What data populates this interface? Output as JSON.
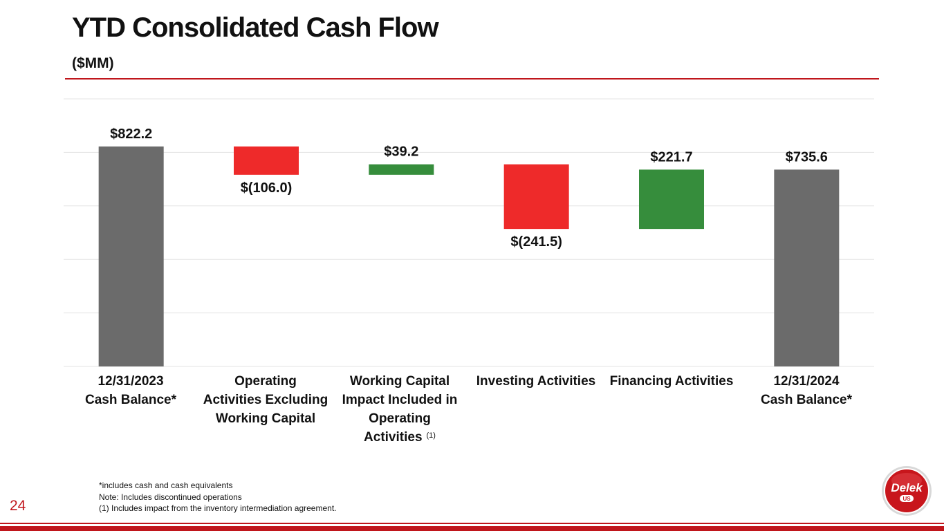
{
  "slide": {
    "title": "YTD Consolidated Cash Flow",
    "subtitle": "($MM)",
    "page_number": "24",
    "footnotes": [
      "*includes cash and cash equivalents",
      "Note: Includes discontinued operations",
      "(1) Includes impact from the inventory intermediation agreement."
    ],
    "footnote_marker": "(1)",
    "logo_text": "Delek",
    "logo_subtext": "US"
  },
  "colors": {
    "total": "#6b6b6b",
    "decrease": "#ee2a2a",
    "increase": "#368d3c",
    "accent": "#c0161c",
    "grid": "#e3e3e3"
  },
  "chart_data": {
    "type": "waterfall",
    "title": "YTD Consolidated Cash Flow",
    "ylabel": "($MM)",
    "ylim": [
      0,
      1000
    ],
    "grid": true,
    "categories": [
      [
        "12/31/2023",
        "Cash Balance*"
      ],
      [
        "Operating",
        "Activities Excluding",
        "Working Capital"
      ],
      [
        "Working Capital",
        "Impact Included in",
        "Operating",
        "Activities"
      ],
      [
        "Investing Activities"
      ],
      [
        "Financing Activities"
      ],
      [
        "12/31/2024",
        "Cash Balance*"
      ]
    ],
    "values": [
      822.2,
      -106.0,
      39.2,
      -241.5,
      221.7,
      735.6
    ],
    "bar_kinds": [
      "total",
      "decrease",
      "increase",
      "decrease",
      "increase",
      "total"
    ],
    "labels": [
      "$822.2",
      "$(106.0)",
      "$39.2",
      "$(241.5)",
      "$221.7",
      "$735.6"
    ]
  }
}
